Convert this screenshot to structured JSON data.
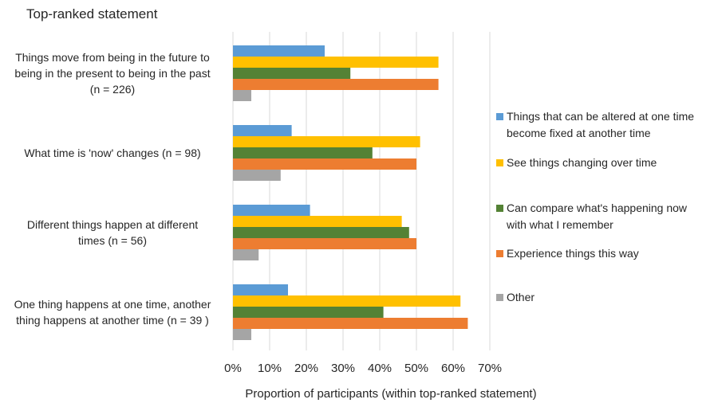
{
  "chart_data": {
    "type": "bar",
    "orientation": "horizontal",
    "title": "Top-ranked statement",
    "xlabel": "Proportion of participants (within top-ranked statement)",
    "xlim": [
      0,
      0.7
    ],
    "xticks": [
      "0%",
      "10%",
      "20%",
      "30%",
      "40%",
      "50%",
      "60%",
      "70%"
    ],
    "grid": true,
    "legend_position": "right",
    "categories": [
      {
        "lines": [
          "Things move from being in the future to",
          "being in the present to being in the past",
          "(n = 226)"
        ]
      },
      {
        "lines": [
          "What time is 'now' changes (n = 98)"
        ]
      },
      {
        "lines": [
          "Different things happen at different",
          "times (n = 56)"
        ]
      },
      {
        "lines": [
          "One thing happens at one time, another",
          "thing happens at another time (n = 39 )"
        ]
      }
    ],
    "series": [
      {
        "name": "Things that can be altered at one time become fixed at another time",
        "legend_lines": [
          "Things that can be altered at one time",
          "become fixed at another time"
        ],
        "color": "#5B9BD5",
        "values": [
          0.25,
          0.16,
          0.21,
          0.15
        ]
      },
      {
        "name": "See things changing over time",
        "legend_lines": [
          "See things changing over time"
        ],
        "color": "#FFC000",
        "values": [
          0.56,
          0.51,
          0.46,
          0.62
        ]
      },
      {
        "name": "Can compare what's happening now with what I remember",
        "legend_lines": [
          "Can compare what's happening now",
          "with what I remember"
        ],
        "color": "#548235",
        "values": [
          0.32,
          0.38,
          0.48,
          0.41
        ]
      },
      {
        "name": "Experience things this way",
        "legend_lines": [
          "Experience things this way"
        ],
        "color": "#ED7D31",
        "values": [
          0.56,
          0.5,
          0.5,
          0.64
        ]
      },
      {
        "name": "Other",
        "legend_lines": [
          "Other"
        ],
        "color": "#A5A5A5",
        "values": [
          0.05,
          0.13,
          0.07,
          0.05
        ]
      }
    ]
  }
}
